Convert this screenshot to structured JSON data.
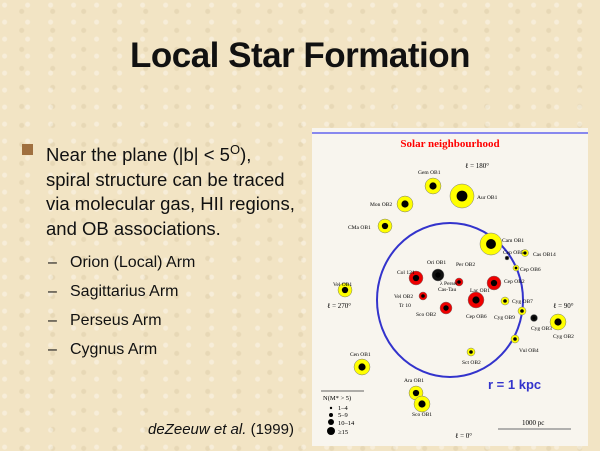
{
  "slide": {
    "title": "Local Star Formation",
    "bullet": {
      "line1": "Near the plane (|b| < 5",
      "degree": "O",
      "line1_end": "),",
      "line2": "spiral structure can be traced",
      "line3": "via molecular gas, HII regions,",
      "line4": "and OB associations."
    },
    "sub_bullets": [
      "Orion (Local) Arm",
      "Sagittarius Arm",
      "Perseus Arm",
      "Cygnus Arm"
    ],
    "citation_author": "deZeeuw et al.",
    "citation_year": "(1999)"
  },
  "figure": {
    "title": "Solar neighbourhood",
    "radius_label": "r = 1 kpc",
    "scale_label": "1000 pc",
    "longitudes": {
      "top": "ℓ = 180°",
      "left": "ℓ = 270°",
      "right": "ℓ = 90°",
      "bottom": "ℓ = 0°"
    },
    "legend": {
      "header": "N(M* > 5)",
      "items": [
        "1–4",
        "5–9",
        "10–14",
        "≥15"
      ]
    },
    "colors": {
      "title": "#ff0000",
      "circle": "#3333cc",
      "yellow": "#ffff00",
      "red": "#ee0000"
    },
    "associations": [
      "Gem OB1",
      "Aur OB1",
      "Mon OB2",
      "CMa OB1",
      "Cam OB1",
      "Cas OB14",
      "Ori OB1",
      "Col 121",
      "Per OB2",
      "λ Persei",
      "Cas-Tau",
      "Lac OB1",
      "Cep OB2",
      "Cep OB5",
      "Cep OB6",
      "Cyg OB7",
      "Cyg OB9",
      "Cyg OB3",
      "Cyg OB2",
      "Vul OB4",
      "Vel OB1",
      "Vel OB2",
      "Tr 10",
      "Sco OB2",
      "Cep OB6",
      "Sct OB2",
      "Cen OB1",
      "Ara OB1",
      "Sco OB1",
      "Lac"
    ]
  }
}
